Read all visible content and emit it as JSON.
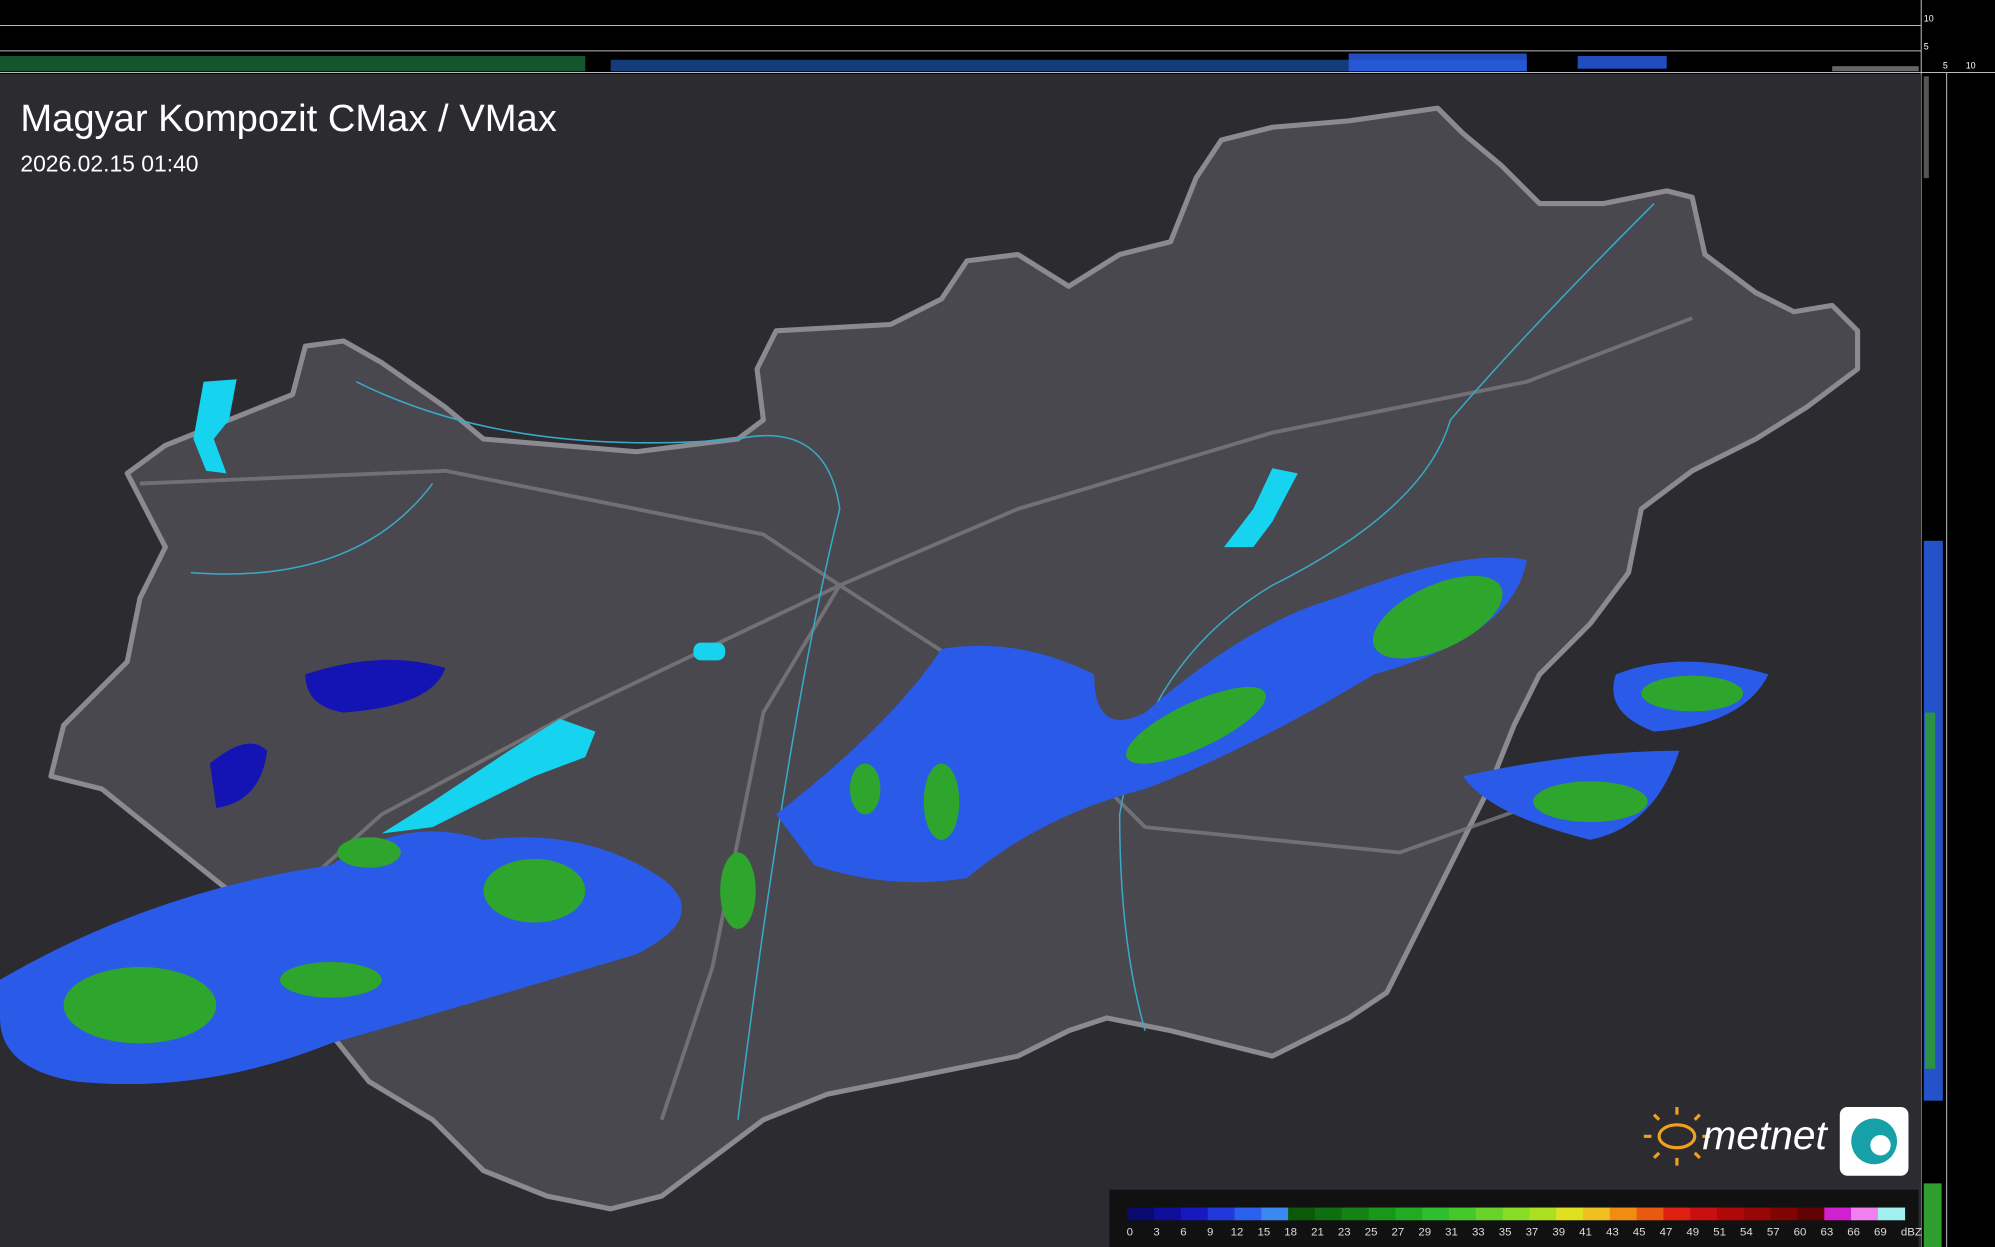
{
  "header": {
    "title": "Magyar Kompozit CMax / VMax",
    "timestamp": "2026.02.15 01:40"
  },
  "profile_axes": {
    "top": [
      10,
      5
    ],
    "side": [
      5,
      10
    ]
  },
  "legend": {
    "labels": [
      0,
      3,
      6,
      9,
      12,
      15,
      18,
      21,
      23,
      25,
      27,
      29,
      31,
      33,
      35,
      37,
      39,
      41,
      43,
      45,
      47,
      49,
      51,
      54,
      57,
      60,
      63,
      66,
      69
    ],
    "colors": [
      "#0a0a6e",
      "#0e0e9a",
      "#1818c0",
      "#2038dc",
      "#2a60ec",
      "#3a88f0",
      "#0a5a0a",
      "#0e6e10",
      "#148214",
      "#1a961a",
      "#22aa22",
      "#2ebe2e",
      "#44c82c",
      "#66d22a",
      "#88dc26",
      "#aae020",
      "#e0e020",
      "#f0c020",
      "#f08c10",
      "#e85a10",
      "#e02010",
      "#c81010",
      "#b00808",
      "#980606",
      "#800404",
      "#600202",
      "#d020d0",
      "#f080f0",
      "#a0f0f0"
    ],
    "unit": "dBZ"
  },
  "logo": {
    "text": "metnet"
  }
}
